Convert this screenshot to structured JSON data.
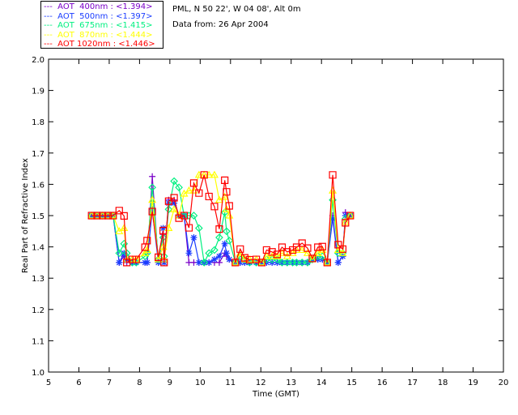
{
  "header": {
    "location": "PML, N 50 22', W 04 08', Alt 0m",
    "date": "Data from: 26 Apr 2004"
  },
  "legend": [
    {
      "label": "---  AOT  400nm : <1.394>",
      "color": "#7a00c8"
    },
    {
      "label": "---  AOT  500nm : <1.397>",
      "color": "#1a3cff"
    },
    {
      "label": "---  AOT  675nm : <1.415>",
      "color": "#00f080"
    },
    {
      "label": "---  AOT  870nm : <1.444>",
      "color": "#ffff00"
    },
    {
      "label": "---  AOT 1020nm : <1.446>",
      "color": "#ff0000"
    }
  ],
  "chart_data": {
    "type": "line",
    "xlabel": "Time (GMT)",
    "ylabel": "Real Part of Refractive Index",
    "xlim": [
      5,
      20
    ],
    "ylim": [
      1.0,
      2.0
    ],
    "xticks": [
      "5",
      "6",
      "7",
      "8",
      "9",
      "10",
      "11",
      "12",
      "13",
      "14",
      "15",
      "16",
      "17",
      "18",
      "19",
      "20"
    ],
    "yticks": [
      "1.0",
      "1.1",
      "1.2",
      "1.3",
      "1.4",
      "1.5",
      "1.6",
      "1.7",
      "1.8",
      "1.9",
      "2.0"
    ],
    "x": [
      6.42,
      6.6,
      6.78,
      6.96,
      7.13,
      7.33,
      7.49,
      7.58,
      7.76,
      7.89,
      8.18,
      8.25,
      8.42,
      8.62,
      8.78,
      8.81,
      8.96,
      9.14,
      9.3,
      9.47,
      9.63,
      9.79,
      9.96,
      10.13,
      10.29,
      10.47,
      10.63,
      10.81,
      10.87,
      10.96,
      11.16,
      11.32,
      11.47,
      11.63,
      11.85,
      12.03,
      12.19,
      12.37,
      12.54,
      12.7,
      12.87,
      13.05,
      13.18,
      13.36,
      13.54,
      13.7,
      13.88,
      14.03,
      14.19,
      14.37,
      14.55,
      14.7,
      14.79,
      14.95
    ],
    "series": [
      {
        "name": "AOT 400nm",
        "marker": "plus",
        "values": [
          1.5,
          1.5,
          1.5,
          1.5,
          1.5,
          1.35,
          1.37,
          1.35,
          1.35,
          1.35,
          1.35,
          1.35,
          1.625,
          1.35,
          1.44,
          1.35,
          1.55,
          1.55,
          1.5,
          1.5,
          1.35,
          1.35,
          1.35,
          1.35,
          1.35,
          1.35,
          1.35,
          1.38,
          1.37,
          1.36,
          1.35,
          1.35,
          1.35,
          1.35,
          1.35,
          1.35,
          1.35,
          1.35,
          1.35,
          1.35,
          1.35,
          1.35,
          1.35,
          1.35,
          1.35,
          1.36,
          1.36,
          1.36,
          1.35,
          1.5,
          1.35,
          1.37,
          1.51,
          1.5
        ]
      },
      {
        "name": "AOT 500nm",
        "marker": "star",
        "values": [
          1.5,
          1.5,
          1.5,
          1.5,
          1.5,
          1.35,
          1.38,
          1.36,
          1.35,
          1.35,
          1.35,
          1.35,
          1.52,
          1.35,
          1.46,
          1.35,
          1.54,
          1.54,
          1.5,
          1.5,
          1.38,
          1.43,
          1.35,
          1.35,
          1.35,
          1.36,
          1.37,
          1.41,
          1.38,
          1.36,
          1.35,
          1.35,
          1.35,
          1.35,
          1.35,
          1.35,
          1.35,
          1.35,
          1.35,
          1.35,
          1.35,
          1.35,
          1.35,
          1.35,
          1.35,
          1.36,
          1.36,
          1.36,
          1.35,
          1.49,
          1.35,
          1.37,
          1.5,
          1.5
        ]
      },
      {
        "name": "AOT 675nm",
        "marker": "diamond",
        "values": [
          1.5,
          1.5,
          1.5,
          1.5,
          1.5,
          1.38,
          1.41,
          1.38,
          1.35,
          1.35,
          1.37,
          1.38,
          1.59,
          1.36,
          1.43,
          1.37,
          1.52,
          1.61,
          1.59,
          1.5,
          1.5,
          1.5,
          1.46,
          1.35,
          1.38,
          1.39,
          1.43,
          1.51,
          1.45,
          1.42,
          1.35,
          1.37,
          1.36,
          1.35,
          1.35,
          1.35,
          1.36,
          1.36,
          1.36,
          1.35,
          1.35,
          1.35,
          1.35,
          1.35,
          1.35,
          1.36,
          1.37,
          1.37,
          1.35,
          1.55,
          1.38,
          1.38,
          1.49,
          1.5
        ]
      },
      {
        "name": "AOT 870nm",
        "marker": "triangle",
        "values": [
          1.5,
          1.5,
          1.5,
          1.5,
          1.5,
          1.45,
          1.46,
          1.36,
          1.36,
          1.36,
          1.38,
          1.39,
          1.55,
          1.36,
          1.4,
          1.36,
          1.46,
          1.52,
          1.5,
          1.57,
          1.58,
          1.58,
          1.63,
          1.63,
          1.63,
          1.63,
          1.55,
          1.56,
          1.52,
          1.5,
          1.35,
          1.38,
          1.36,
          1.36,
          1.36,
          1.35,
          1.37,
          1.37,
          1.37,
          1.38,
          1.37,
          1.38,
          1.39,
          1.39,
          1.38,
          1.36,
          1.38,
          1.39,
          1.35,
          1.58,
          1.39,
          1.38,
          1.48,
          1.5
        ]
      },
      {
        "name": "AOT 1020nm",
        "marker": "square",
        "values": [
          1.5,
          1.5,
          1.5,
          1.5,
          1.5,
          1.516,
          1.499,
          1.35,
          1.36,
          1.36,
          1.399,
          1.42,
          1.513,
          1.367,
          1.452,
          1.35,
          1.546,
          1.557,
          1.492,
          1.5,
          1.461,
          1.604,
          1.572,
          1.63,
          1.561,
          1.529,
          1.457,
          1.613,
          1.576,
          1.531,
          1.35,
          1.393,
          1.365,
          1.359,
          1.36,
          1.35,
          1.39,
          1.384,
          1.376,
          1.399,
          1.384,
          1.39,
          1.399,
          1.412,
          1.396,
          1.363,
          1.399,
          1.401,
          1.35,
          1.63,
          1.407,
          1.393,
          1.477,
          1.5
        ]
      }
    ]
  }
}
